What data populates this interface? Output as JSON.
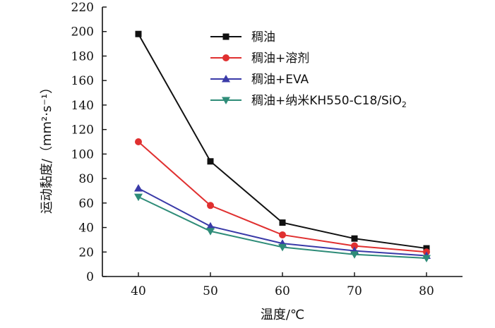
{
  "chart_data": {
    "type": "line",
    "xlabel": "温度/℃",
    "ylabel": "运动黏度/（mm²·s⁻¹）",
    "x": [
      40,
      50,
      60,
      70,
      80
    ],
    "xlim": [
      35,
      85
    ],
    "ylim": [
      0,
      220
    ],
    "xticks": [
      40,
      50,
      60,
      70,
      80
    ],
    "yticks": [
      0,
      20,
      40,
      60,
      80,
      100,
      120,
      140,
      160,
      180,
      200,
      220
    ],
    "grid": false,
    "legend_position": "top-right",
    "series": [
      {
        "name": "稠油",
        "color": "#111111",
        "marker": "square",
        "values": [
          198,
          94,
          44,
          31,
          23
        ]
      },
      {
        "name": "稠油+溶剂",
        "color": "#e03030",
        "marker": "circle",
        "values": [
          110,
          58,
          34,
          25,
          20
        ]
      },
      {
        "name": "稠油+EVA",
        "color": "#3a3aa8",
        "marker": "triangle-up",
        "values": [
          72,
          41,
          27,
          21,
          17
        ]
      },
      {
        "name": "稠油+纳米KH550-C18/SiO",
        "name_subscript": "2",
        "color": "#2e8c78",
        "marker": "triangle-down",
        "values": [
          65,
          37,
          24,
          18,
          15
        ]
      }
    ]
  }
}
